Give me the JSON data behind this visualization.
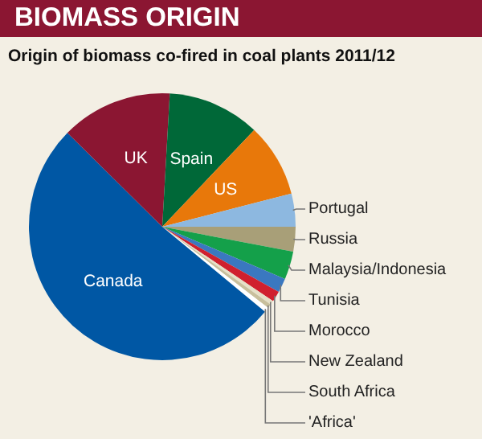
{
  "chart_data": {
    "type": "pie",
    "title": "BIOMASS ORIGIN",
    "subtitle": "Origin of biomass co-fired in coal plants 2011/12",
    "categories": [
      "Russia",
      "Malaysia/Indonesia",
      "Tunisia",
      "Morocco",
      "New Zealand",
      "South Africa",
      "'Africa'",
      "Canada",
      "UK",
      "Spain",
      "US",
      "Portugal"
    ],
    "values": [
      3,
      3.4,
      1.7,
      1.3,
      0.5,
      0.5,
      0.6,
      51.4,
      13.5,
      11.2,
      8.9,
      4
    ],
    "colors": [
      "#a89f78",
      "#14a04a",
      "#3a78c0",
      "#d0202e",
      "#e6e0c8",
      "#c8bf9c",
      "#ffffff",
      "#0057a4",
      "#8b1632",
      "#006838",
      "#e8780a",
      "#8db8e0"
    ]
  }
}
